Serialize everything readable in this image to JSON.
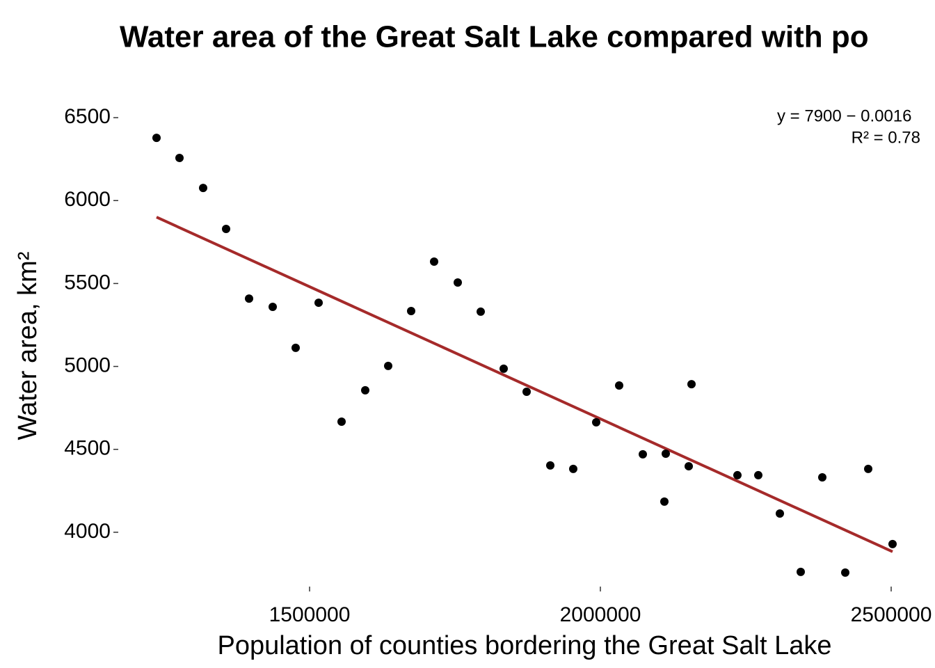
{
  "chart_data": {
    "type": "scatter",
    "title": "Water area of the Great Salt Lake compared with po",
    "x_label": "Population of counties bordering the Great Salt Lake",
    "y_label": "Water area, km²",
    "annotations": [
      "y = 7900 − 0.0016",
      "R² = 0.78"
    ],
    "x": [
      1236842,
      1276316,
      1316986,
      1356460,
      1395935,
      1436603,
      1476077,
      1515550,
      1555024,
      1595694,
      1635167,
      1674641,
      1714115,
      1754785,
      1794258,
      1833732,
      1873206,
      1913876,
      1953349,
      1992823,
      2032297,
      2072967,
      2110048,
      2112440,
      2151914,
      2156699,
      2235646,
      2271531,
      2308612,
      2344498,
      2381579,
      2421053,
      2460526,
      2502392
    ],
    "values": [
      6378,
      6257,
      6076,
      5829,
      5409,
      5359,
      5112,
      5384,
      4667,
      4856,
      5003,
      5334,
      5632,
      5506,
      5330,
      4986,
      4847,
      4403,
      4382,
      4663,
      4885,
      4470,
      4185,
      4474,
      4398,
      4893,
      4344,
      4344,
      4113,
      3761,
      4331,
      3757,
      4382,
      3929
    ],
    "color": "#000000",
    "fit": {
      "x": [
        1236842,
        2502392
      ],
      "values": [
        5900,
        3883
      ],
      "color": "#a52a2a"
    },
    "xlim": [
      1171053,
      2575359
    ],
    "ylim": [
      3664,
      6664
    ],
    "xticks": [
      1500000,
      2000000,
      2500000
    ],
    "yticks": [
      4000,
      4500,
      5000,
      5500,
      6000,
      6500
    ]
  }
}
